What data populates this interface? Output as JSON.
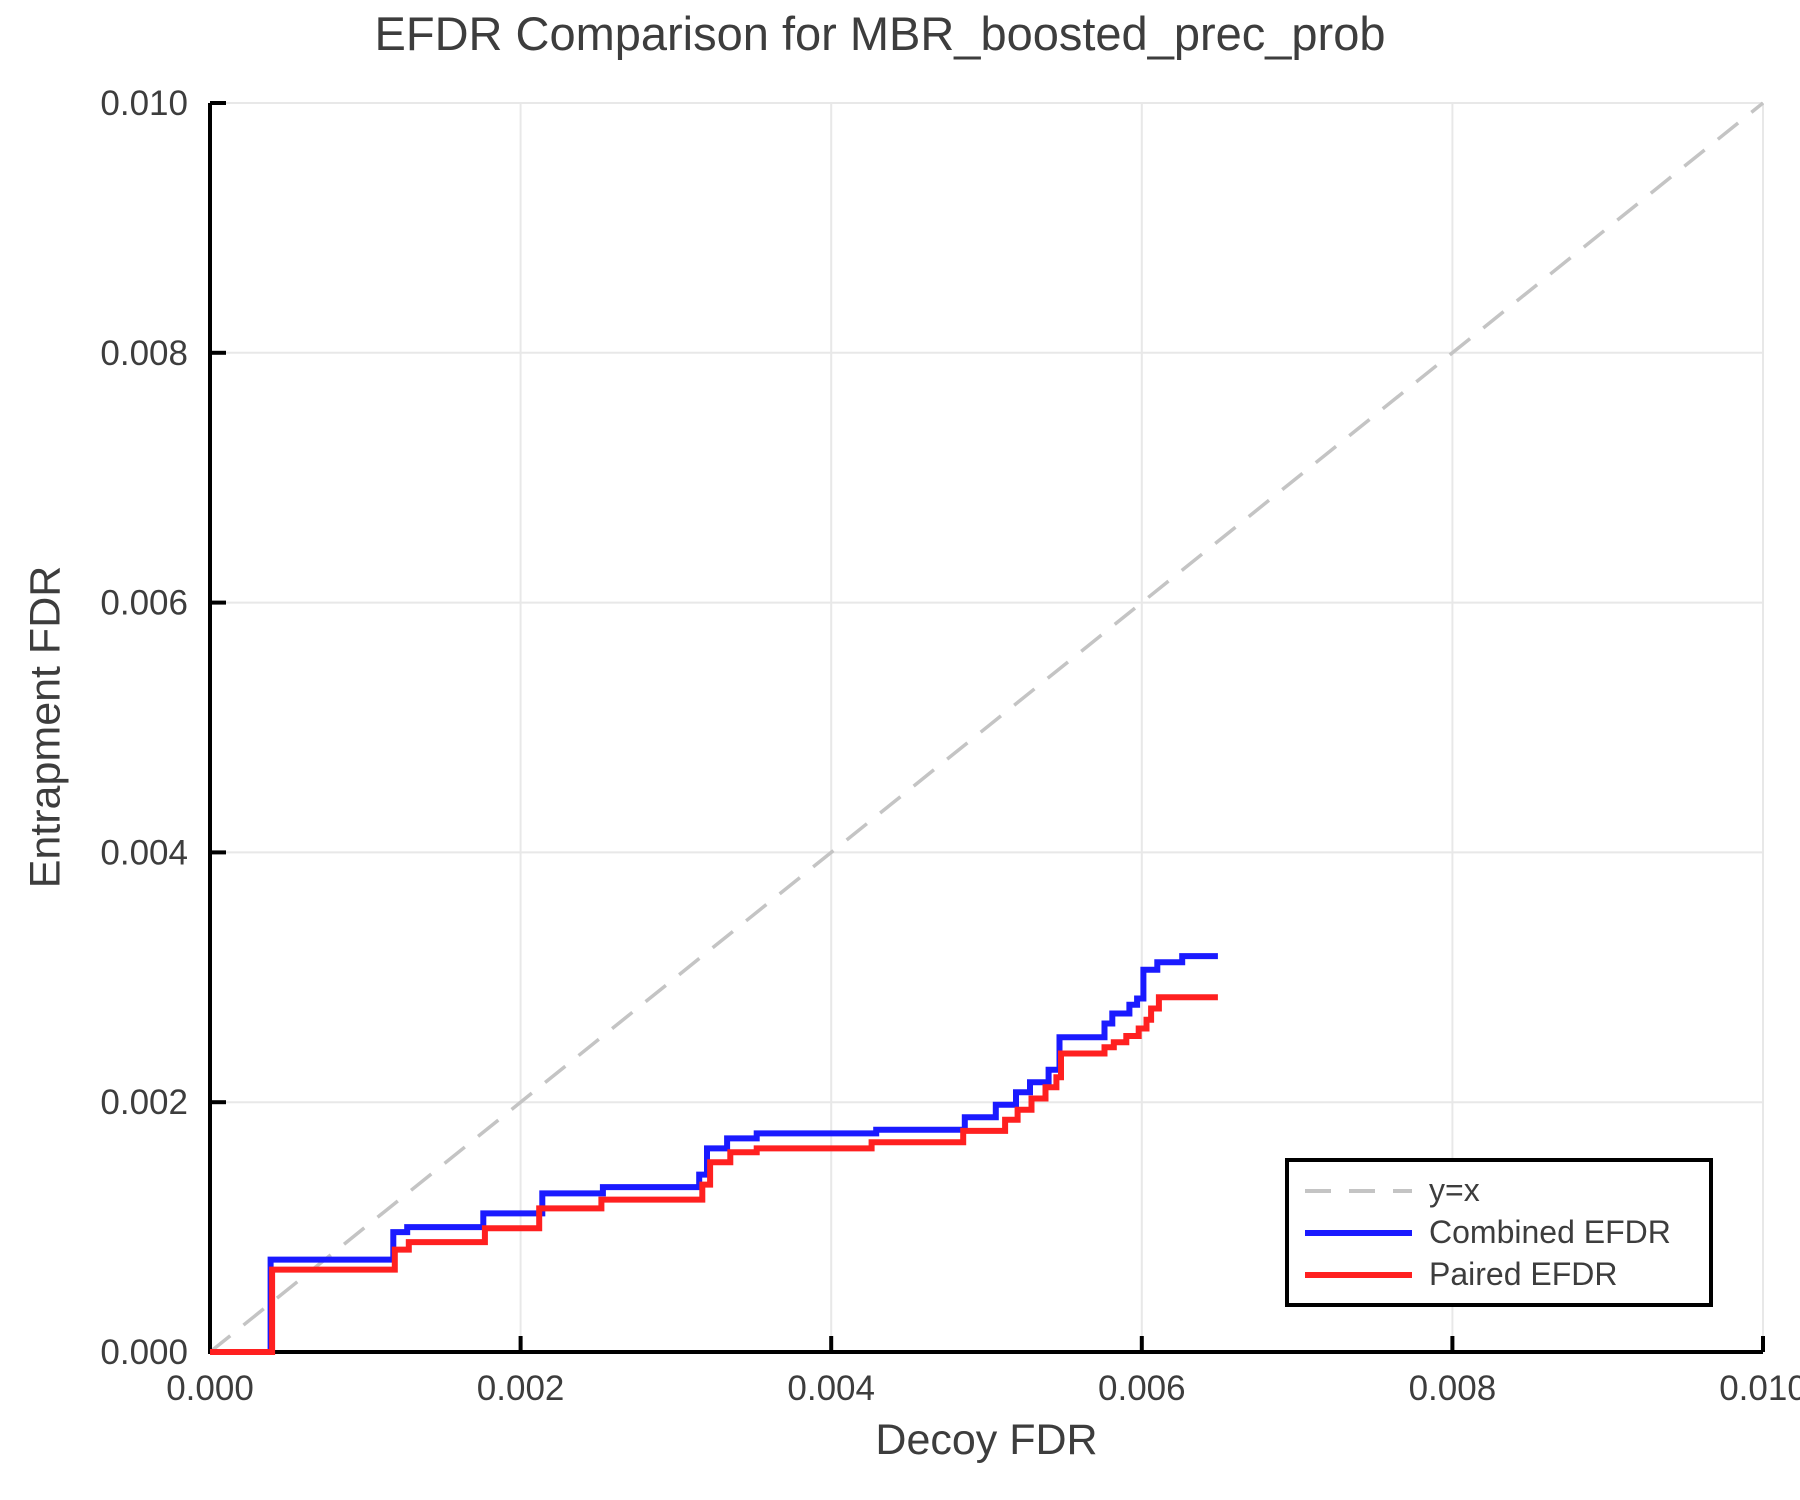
{
  "chart_data": {
    "type": "line",
    "title": "EFDR Comparison for MBR_boosted_prec_prob",
    "xlabel": "Decoy FDR",
    "ylabel": "Entrapment FDR",
    "xlim": [
      0.0,
      0.01
    ],
    "ylim": [
      0.0,
      0.01
    ],
    "tick_values": [
      0.0,
      0.002,
      0.004,
      0.006,
      0.008,
      0.01
    ],
    "tick_labels": [
      "0.000",
      "0.002",
      "0.004",
      "0.006",
      "0.008",
      "0.010"
    ],
    "grid": true,
    "grid_color": "#e8e8e8",
    "axis_color": "#000000",
    "text_color": "#3d3d3d",
    "legend_position": "lower right",
    "reference_line": {
      "name": "y=x",
      "color": "#c4c4c4",
      "style": "dashed",
      "points": [
        [
          0.0,
          0.0
        ],
        [
          0.01,
          0.01
        ]
      ]
    },
    "series": [
      {
        "name": "Combined EFDR",
        "color": "#1a1aff",
        "style": "step",
        "points": [
          [
            0.0,
            0.0
          ],
          [
            0.00039,
            0.00074
          ],
          [
            0.00118,
            0.00096
          ],
          [
            0.00127,
            0.001
          ],
          [
            0.00176,
            0.00111
          ],
          [
            0.00214,
            0.00127
          ],
          [
            0.00253,
            0.00132
          ],
          [
            0.00315,
            0.00142
          ],
          [
            0.0032,
            0.00163
          ],
          [
            0.00333,
            0.00171
          ],
          [
            0.00352,
            0.00175
          ],
          [
            0.00429,
            0.00178
          ],
          [
            0.00486,
            0.00188
          ],
          [
            0.00506,
            0.00198
          ],
          [
            0.00519,
            0.00208
          ],
          [
            0.00528,
            0.00216
          ],
          [
            0.0054,
            0.00226
          ],
          [
            0.00547,
            0.00252
          ],
          [
            0.00576,
            0.00263
          ],
          [
            0.00581,
            0.00271
          ],
          [
            0.00592,
            0.00278
          ],
          [
            0.00597,
            0.00283
          ],
          [
            0.00601,
            0.00306
          ],
          [
            0.0061,
            0.00312
          ],
          [
            0.00626,
            0.00317
          ],
          [
            0.00649,
            0.00317
          ]
        ]
      },
      {
        "name": "Paired EFDR",
        "color": "#ff2020",
        "style": "step",
        "points": [
          [
            0.0,
            0.0
          ],
          [
            0.0004,
            0.00066
          ],
          [
            0.00119,
            0.00082
          ],
          [
            0.00128,
            0.00088
          ],
          [
            0.00177,
            0.00099
          ],
          [
            0.00212,
            0.00115
          ],
          [
            0.00252,
            0.00122
          ],
          [
            0.00317,
            0.00134
          ],
          [
            0.00322,
            0.00152
          ],
          [
            0.00335,
            0.0016
          ],
          [
            0.00352,
            0.00163
          ],
          [
            0.00426,
            0.00168
          ],
          [
            0.00485,
            0.00177
          ],
          [
            0.00512,
            0.00186
          ],
          [
            0.0052,
            0.00194
          ],
          [
            0.00529,
            0.00203
          ],
          [
            0.00538,
            0.00212
          ],
          [
            0.00545,
            0.0022
          ],
          [
            0.00548,
            0.00239
          ],
          [
            0.00576,
            0.00244
          ],
          [
            0.00582,
            0.00248
          ],
          [
            0.0059,
            0.00253
          ],
          [
            0.00598,
            0.00259
          ],
          [
            0.00603,
            0.00266
          ],
          [
            0.00606,
            0.00275
          ],
          [
            0.00611,
            0.00284
          ],
          [
            0.00649,
            0.00284
          ]
        ]
      }
    ]
  }
}
